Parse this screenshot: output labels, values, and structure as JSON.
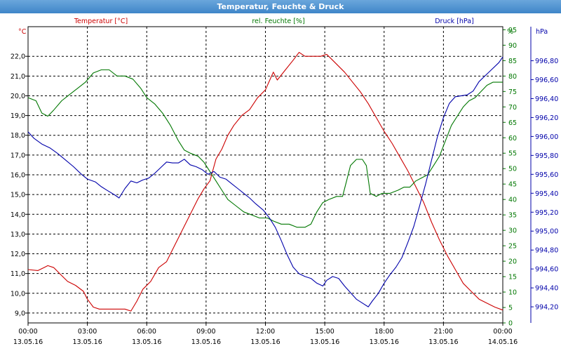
{
  "window": {
    "title": "Temperatur, Feuchte & Druck"
  },
  "chart_data": {
    "type": "line",
    "title": "Temperatur, Feuchte & Druck",
    "x_ticks": [
      {
        "time": "00:00",
        "date": "13.05.16"
      },
      {
        "time": "03:00",
        "date": "13.05.16"
      },
      {
        "time": "06:00",
        "date": "13.05.16"
      },
      {
        "time": "09:00",
        "date": "13.05.16"
      },
      {
        "time": "12:00",
        "date": "13.05.16"
      },
      {
        "time": "15:00",
        "date": "13.05.16"
      },
      {
        "time": "18:00",
        "date": "13.05.16"
      },
      {
        "time": "21:00",
        "date": "13.05.16"
      },
      {
        "time": "00:00",
        "date": "14.05.16"
      }
    ],
    "x_hours_range": [
      0,
      24
    ],
    "grid": true,
    "axes": {
      "temperature": {
        "unit": "°C",
        "range": [
          8.5,
          23.5
        ],
        "ticks": [
          "9,0",
          "10,0",
          "11,0",
          "12,0",
          "13,0",
          "14,0",
          "15,0",
          "16,0",
          "17,0",
          "18,0",
          "19,0",
          "20,0",
          "21,0",
          "22,0"
        ],
        "tick_values": [
          9,
          10,
          11,
          12,
          13,
          14,
          15,
          16,
          17,
          18,
          19,
          20,
          21,
          22
        ],
        "color": "#cc0000"
      },
      "humidity": {
        "unit": "%",
        "range": [
          0,
          96
        ],
        "ticks": [
          "0",
          "5",
          "10",
          "15",
          "20",
          "25",
          "30",
          "35",
          "40",
          "45",
          "50",
          "55",
          "60",
          "65",
          "70",
          "75",
          "80",
          "85",
          "90",
          "95"
        ],
        "tick_values": [
          0,
          5,
          10,
          15,
          20,
          25,
          30,
          35,
          40,
          45,
          50,
          55,
          60,
          65,
          70,
          75,
          80,
          85,
          90,
          95
        ],
        "color": "#007700"
      },
      "pressure": {
        "unit": "hPa",
        "range": [
          994.03,
          997.16
        ],
        "ticks": [
          "994,20",
          "994,40",
          "994,60",
          "994,80",
          "995,00",
          "995,20",
          "995,40",
          "995,60",
          "995,80",
          "996,00",
          "996,20",
          "996,40",
          "996,60",
          "996,80"
        ],
        "tick_values": [
          994.2,
          994.4,
          994.6,
          994.8,
          995.0,
          995.2,
          995.4,
          995.6,
          995.8,
          996.0,
          996.2,
          996.4,
          996.6,
          996.8
        ],
        "color": "#0000aa"
      }
    },
    "series": [
      {
        "name": "Temperatur [°C]",
        "axis": "temperature",
        "color": "#cc0000",
        "points": [
          [
            0,
            11.2
          ],
          [
            0.5,
            11.15
          ],
          [
            0.8,
            11.3
          ],
          [
            1.0,
            11.4
          ],
          [
            1.3,
            11.3
          ],
          [
            1.6,
            11.0
          ],
          [
            2.0,
            10.6
          ],
          [
            2.4,
            10.4
          ],
          [
            2.8,
            10.1
          ],
          [
            3.0,
            9.7
          ],
          [
            3.3,
            9.3
          ],
          [
            3.6,
            9.2
          ],
          [
            4.0,
            9.2
          ],
          [
            4.5,
            9.2
          ],
          [
            4.9,
            9.2
          ],
          [
            5.2,
            9.1
          ],
          [
            5.5,
            9.6
          ],
          [
            5.8,
            10.2
          ],
          [
            6.2,
            10.6
          ],
          [
            6.6,
            11.3
          ],
          [
            7.0,
            11.6
          ],
          [
            7.4,
            12.4
          ],
          [
            7.8,
            13.2
          ],
          [
            8.2,
            14.0
          ],
          [
            8.6,
            14.8
          ],
          [
            8.9,
            15.3
          ],
          [
            9.2,
            15.7
          ],
          [
            9.5,
            16.8
          ],
          [
            9.8,
            17.3
          ],
          [
            10.1,
            18.0
          ],
          [
            10.4,
            18.5
          ],
          [
            10.8,
            19.0
          ],
          [
            11.2,
            19.3
          ],
          [
            11.6,
            19.9
          ],
          [
            12.0,
            20.3
          ],
          [
            12.4,
            21.2
          ],
          [
            12.6,
            20.8
          ],
          [
            13.0,
            21.3
          ],
          [
            13.4,
            21.8
          ],
          [
            13.7,
            22.2
          ],
          [
            14.0,
            22.0
          ],
          [
            14.4,
            22.0
          ],
          [
            14.8,
            22.0
          ],
          [
            15.1,
            22.1
          ],
          [
            15.4,
            21.8
          ],
          [
            15.7,
            21.5
          ],
          [
            16.0,
            21.2
          ],
          [
            16.4,
            20.7
          ],
          [
            16.8,
            20.2
          ],
          [
            17.2,
            19.6
          ],
          [
            17.6,
            18.9
          ],
          [
            18.0,
            18.2
          ],
          [
            18.4,
            17.6
          ],
          [
            18.8,
            16.9
          ],
          [
            19.2,
            16.2
          ],
          [
            19.6,
            15.4
          ],
          [
            20.0,
            14.6
          ],
          [
            20.4,
            13.6
          ],
          [
            20.8,
            12.7
          ],
          [
            21.2,
            11.9
          ],
          [
            21.6,
            11.2
          ],
          [
            22.0,
            10.5
          ],
          [
            22.4,
            10.1
          ],
          [
            22.8,
            9.7
          ],
          [
            23.2,
            9.5
          ],
          [
            23.6,
            9.3
          ],
          [
            24.0,
            9.15
          ]
        ]
      },
      {
        "name": "rel. Feuchte [%]",
        "axis": "humidity",
        "color": "#007700",
        "points": [
          [
            0,
            73
          ],
          [
            0.4,
            72
          ],
          [
            0.7,
            68
          ],
          [
            1.0,
            67
          ],
          [
            1.3,
            69
          ],
          [
            1.7,
            72
          ],
          [
            2.1,
            74
          ],
          [
            2.5,
            76
          ],
          [
            2.9,
            78
          ],
          [
            3.3,
            81
          ],
          [
            3.7,
            82
          ],
          [
            4.1,
            82
          ],
          [
            4.5,
            80
          ],
          [
            4.9,
            80
          ],
          [
            5.3,
            79
          ],
          [
            5.7,
            76
          ],
          [
            6.0,
            73
          ],
          [
            6.4,
            71
          ],
          [
            6.8,
            68
          ],
          [
            7.2,
            64
          ],
          [
            7.6,
            59
          ],
          [
            7.9,
            56
          ],
          [
            8.2,
            55
          ],
          [
            8.6,
            54
          ],
          [
            8.9,
            52
          ],
          [
            9.2,
            49
          ],
          [
            9.5,
            46
          ],
          [
            9.8,
            43
          ],
          [
            10.1,
            40
          ],
          [
            10.5,
            38
          ],
          [
            10.9,
            36
          ],
          [
            11.3,
            35
          ],
          [
            11.7,
            34
          ],
          [
            12.1,
            34
          ],
          [
            12.4,
            33
          ],
          [
            12.8,
            32
          ],
          [
            13.2,
            32
          ],
          [
            13.6,
            31
          ],
          [
            14.0,
            31
          ],
          [
            14.3,
            32
          ],
          [
            14.6,
            36
          ],
          [
            14.9,
            39
          ],
          [
            15.2,
            40
          ],
          [
            15.6,
            41
          ],
          [
            15.9,
            41
          ],
          [
            16.1,
            46
          ],
          [
            16.3,
            51
          ],
          [
            16.6,
            53
          ],
          [
            16.9,
            53
          ],
          [
            17.1,
            51
          ],
          [
            17.3,
            42
          ],
          [
            17.6,
            41
          ],
          [
            17.9,
            42
          ],
          [
            18.3,
            42
          ],
          [
            18.7,
            43
          ],
          [
            19.0,
            44
          ],
          [
            19.3,
            44
          ],
          [
            19.6,
            46
          ],
          [
            19.9,
            47
          ],
          [
            20.2,
            48
          ],
          [
            20.5,
            51
          ],
          [
            20.8,
            54
          ],
          [
            21.1,
            59
          ],
          [
            21.4,
            64
          ],
          [
            21.7,
            67
          ],
          [
            22.0,
            70
          ],
          [
            22.3,
            72
          ],
          [
            22.6,
            73
          ],
          [
            22.9,
            75
          ],
          [
            23.2,
            77
          ],
          [
            23.5,
            78
          ],
          [
            24.0,
            78
          ]
        ]
      },
      {
        "name": "Druck [hPa]",
        "axis": "pressure",
        "color": "#0000aa",
        "points": [
          [
            0,
            996.05
          ],
          [
            0.3,
            995.98
          ],
          [
            0.7,
            995.92
          ],
          [
            1.1,
            995.88
          ],
          [
            1.5,
            995.82
          ],
          [
            1.9,
            995.75
          ],
          [
            2.3,
            995.68
          ],
          [
            2.7,
            995.6
          ],
          [
            3.0,
            995.55
          ],
          [
            3.4,
            995.52
          ],
          [
            3.7,
            995.47
          ],
          [
            4.0,
            995.43
          ],
          [
            4.4,
            995.38
          ],
          [
            4.6,
            995.35
          ],
          [
            4.9,
            995.45
          ],
          [
            5.2,
            995.53
          ],
          [
            5.5,
            995.51
          ],
          [
            5.8,
            995.54
          ],
          [
            6.1,
            995.56
          ],
          [
            6.4,
            995.61
          ],
          [
            6.7,
            995.67
          ],
          [
            7.0,
            995.73
          ],
          [
            7.3,
            995.72
          ],
          [
            7.6,
            995.72
          ],
          [
            7.9,
            995.76
          ],
          [
            8.2,
            995.7
          ],
          [
            8.5,
            995.68
          ],
          [
            8.8,
            995.65
          ],
          [
            9.1,
            995.6
          ],
          [
            9.4,
            995.63
          ],
          [
            9.7,
            995.57
          ],
          [
            10.0,
            995.55
          ],
          [
            10.3,
            995.5
          ],
          [
            10.6,
            995.45
          ],
          [
            10.9,
            995.4
          ],
          [
            11.2,
            995.35
          ],
          [
            11.5,
            995.29
          ],
          [
            11.9,
            995.22
          ],
          [
            12.2,
            995.14
          ],
          [
            12.5,
            995.04
          ],
          [
            12.8,
            994.9
          ],
          [
            13.1,
            994.75
          ],
          [
            13.4,
            994.62
          ],
          [
            13.7,
            994.55
          ],
          [
            14.0,
            994.52
          ],
          [
            14.3,
            994.5
          ],
          [
            14.6,
            994.45
          ],
          [
            14.9,
            994.42
          ],
          [
            15.1,
            994.48
          ],
          [
            15.4,
            994.52
          ],
          [
            15.7,
            994.5
          ],
          [
            16.0,
            994.42
          ],
          [
            16.3,
            994.35
          ],
          [
            16.6,
            994.28
          ],
          [
            16.9,
            994.24
          ],
          [
            17.2,
            994.2
          ],
          [
            17.4,
            994.26
          ],
          [
            17.7,
            994.34
          ],
          [
            18.0,
            994.45
          ],
          [
            18.3,
            994.54
          ],
          [
            18.6,
            994.62
          ],
          [
            18.9,
            994.72
          ],
          [
            19.2,
            994.88
          ],
          [
            19.5,
            995.05
          ],
          [
            19.8,
            995.27
          ],
          [
            20.1,
            995.5
          ],
          [
            20.4,
            995.75
          ],
          [
            20.7,
            996.0
          ],
          [
            21.0,
            996.2
          ],
          [
            21.3,
            996.35
          ],
          [
            21.6,
            996.42
          ],
          [
            21.9,
            996.43
          ],
          [
            22.2,
            996.44
          ],
          [
            22.5,
            996.48
          ],
          [
            22.8,
            996.58
          ],
          [
            23.1,
            996.64
          ],
          [
            23.4,
            996.7
          ],
          [
            23.8,
            996.78
          ],
          [
            24.0,
            996.84
          ]
        ]
      }
    ],
    "legend": [
      {
        "label": "Temperatur [°C]",
        "color": "#cc0000"
      },
      {
        "label": "rel. Feuchte [%]",
        "color": "#007700"
      },
      {
        "label": "Druck [hPa]",
        "color": "#0000aa"
      }
    ]
  }
}
